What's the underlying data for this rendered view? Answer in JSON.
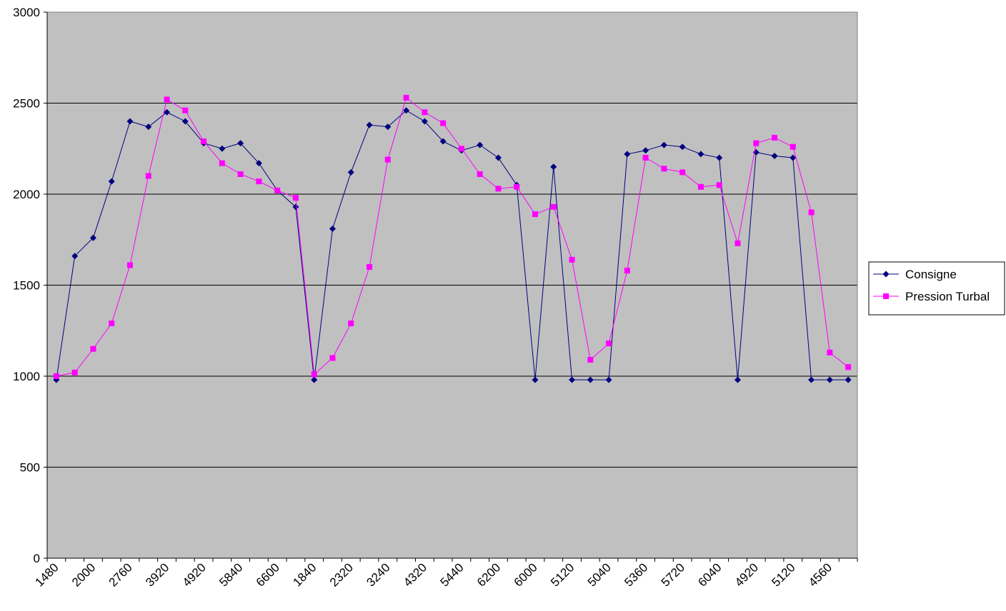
{
  "chart_data": {
    "type": "line",
    "categories": [
      "1480",
      null,
      "2000",
      null,
      "2760",
      null,
      "3920",
      null,
      "4920",
      null,
      "5840",
      null,
      "6600",
      null,
      "1840",
      null,
      "2320",
      null,
      "3240",
      null,
      "4320",
      null,
      "5440",
      null,
      "6200",
      null,
      "6000",
      null,
      "5120",
      null,
      "5040",
      null,
      "5360",
      null,
      "5720",
      null,
      "6040",
      null,
      "4920",
      null,
      "5120",
      null,
      "4560",
      null
    ],
    "series": [
      {
        "name": "Consigne",
        "color": "#000080",
        "marker": "diamond",
        "values": [
          980,
          1660,
          1760,
          2070,
          2400,
          2370,
          2450,
          2400,
          2280,
          2250,
          2280,
          2170,
          2020,
          1930,
          980,
          1810,
          2120,
          2380,
          2370,
          2460,
          2400,
          2290,
          2240,
          2270,
          2200,
          2050,
          980,
          2150,
          980,
          980,
          980,
          2220,
          2240,
          2270,
          2260,
          2220,
          2200,
          980,
          2230,
          2210,
          2200,
          980,
          980,
          980
        ]
      },
      {
        "name": "Pression Turbal",
        "color": "#ff00ff",
        "marker": "square",
        "values": [
          1000,
          1020,
          1150,
          1290,
          1610,
          2100,
          2520,
          2460,
          2290,
          2170,
          2110,
          2070,
          2020,
          1980,
          1010,
          1100,
          1290,
          1600,
          2190,
          2530,
          2450,
          2390,
          2250,
          2110,
          2030,
          2040,
          1890,
          1930,
          1640,
          1090,
          1180,
          1580,
          2200,
          2140,
          2120,
          2040,
          2050,
          1730,
          2280,
          2310,
          2260,
          1900,
          1130,
          1050
        ]
      }
    ],
    "ylim": [
      0,
      3000
    ],
    "yticks": [
      0,
      500,
      1000,
      1500,
      2000,
      2500,
      3000
    ],
    "grid": true,
    "legend": "right"
  }
}
